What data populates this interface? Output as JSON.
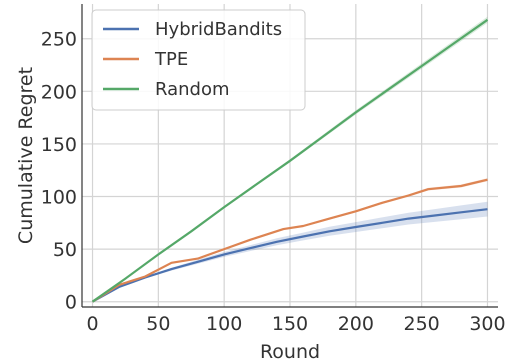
{
  "chart_data": {
    "type": "line",
    "xlabel": "Round",
    "ylabel": "Cumulative Regret",
    "xlim": [
      -8,
      308
    ],
    "ylim": [
      -5,
      283
    ],
    "xticks": [
      0,
      50,
      100,
      150,
      200,
      250,
      300
    ],
    "yticks": [
      0,
      50,
      100,
      150,
      200,
      250
    ],
    "grid": true,
    "legend_position": "top-left",
    "series": [
      {
        "name": "HybridBandits",
        "color": "#4c72b0",
        "x": [
          0,
          20,
          40,
          60,
          80,
          100,
          120,
          140,
          160,
          180,
          200,
          220,
          240,
          260,
          280,
          300
        ],
        "y": [
          0,
          14,
          23,
          31,
          38,
          45,
          51,
          57,
          62,
          67,
          71,
          75,
          79,
          82,
          85,
          88
        ],
        "band": 7
      },
      {
        "name": "TPE",
        "color": "#dd8452",
        "x": [
          0,
          20,
          40,
          60,
          80,
          100,
          120,
          145,
          160,
          180,
          200,
          220,
          240,
          255,
          280,
          300
        ],
        "y": [
          0,
          16,
          24,
          37,
          41,
          50,
          59,
          69,
          72,
          79,
          86,
          94,
          101,
          107,
          110,
          116
        ],
        "band": 1.5
      },
      {
        "name": "Random",
        "color": "#55a868",
        "x": [
          0,
          25,
          50,
          75,
          100,
          125,
          150,
          175,
          200,
          225,
          250,
          275,
          300
        ],
        "y": [
          0,
          22,
          45,
          67,
          90,
          112,
          134,
          157,
          180,
          202,
          224,
          246,
          268
        ],
        "band": 3
      }
    ]
  }
}
